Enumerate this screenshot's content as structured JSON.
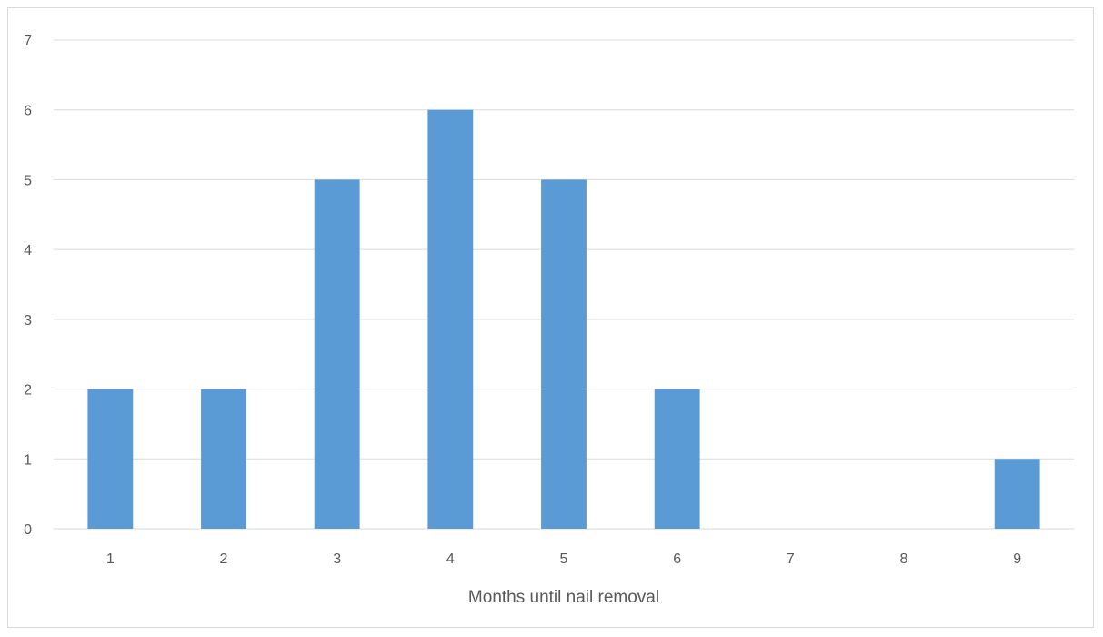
{
  "chart_data": {
    "type": "bar",
    "categories": [
      "1",
      "2",
      "3",
      "4",
      "5",
      "6",
      "7",
      "8",
      "9"
    ],
    "values": [
      2,
      2,
      5,
      6,
      5,
      2,
      0,
      0,
      1
    ],
    "title": "",
    "xlabel": "Months until nail removal",
    "ylabel": "",
    "ylim": [
      0,
      7
    ],
    "yticks": [
      "0",
      "1",
      "2",
      "3",
      "4",
      "5",
      "6",
      "7"
    ],
    "grid": true,
    "legend": "none",
    "colors": {
      "bar": "#5b9bd5",
      "grid": "#d9d9d9",
      "axis": "#d9d9d9",
      "text": "#595959"
    }
  }
}
